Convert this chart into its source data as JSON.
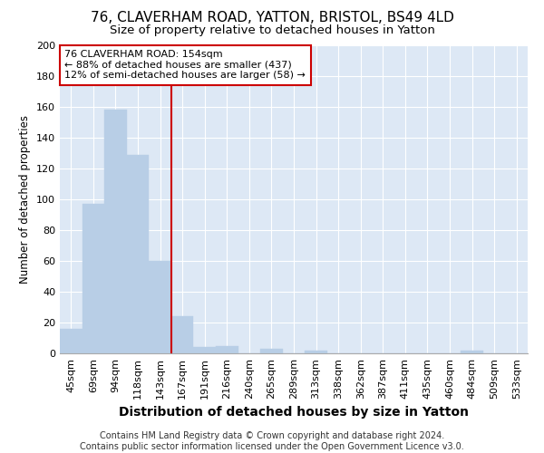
{
  "title_line1": "76, CLAVERHAM ROAD, YATTON, BRISTOL, BS49 4LD",
  "title_line2": "Size of property relative to detached houses in Yatton",
  "xlabel": "Distribution of detached houses by size in Yatton",
  "ylabel": "Number of detached properties",
  "bins": [
    "45sqm",
    "69sqm",
    "94sqm",
    "118sqm",
    "143sqm",
    "167sqm",
    "191sqm",
    "216sqm",
    "240sqm",
    "265sqm",
    "289sqm",
    "313sqm",
    "338sqm",
    "362sqm",
    "387sqm",
    "411sqm",
    "435sqm",
    "460sqm",
    "484sqm",
    "509sqm",
    "533sqm"
  ],
  "values": [
    16,
    97,
    158,
    129,
    60,
    24,
    4,
    5,
    0,
    3,
    0,
    2,
    0,
    0,
    0,
    0,
    0,
    0,
    2,
    0,
    0
  ],
  "bar_color": "#b8cee6",
  "bar_edge_color": "#b8cee6",
  "vline_color": "#cc0000",
  "vline_x": 4.5,
  "annotation_text": "76 CLAVERHAM ROAD: 154sqm\n← 88% of detached houses are smaller (437)\n12% of semi-detached houses are larger (58) →",
  "annotation_box_color": "#ffffff",
  "annotation_box_edge": "#cc0000",
  "ylim": [
    0,
    200
  ],
  "yticks": [
    0,
    20,
    40,
    60,
    80,
    100,
    120,
    140,
    160,
    180,
    200
  ],
  "background_color": "#dde8f5",
  "grid_color": "#ffffff",
  "footer": "Contains HM Land Registry data © Crown copyright and database right 2024.\nContains public sector information licensed under the Open Government Licence v3.0.",
  "title_fontsize": 11,
  "subtitle_fontsize": 9.5,
  "xlabel_fontsize": 10,
  "ylabel_fontsize": 8.5,
  "tick_fontsize": 8,
  "annotation_fontsize": 8,
  "footer_fontsize": 7
}
